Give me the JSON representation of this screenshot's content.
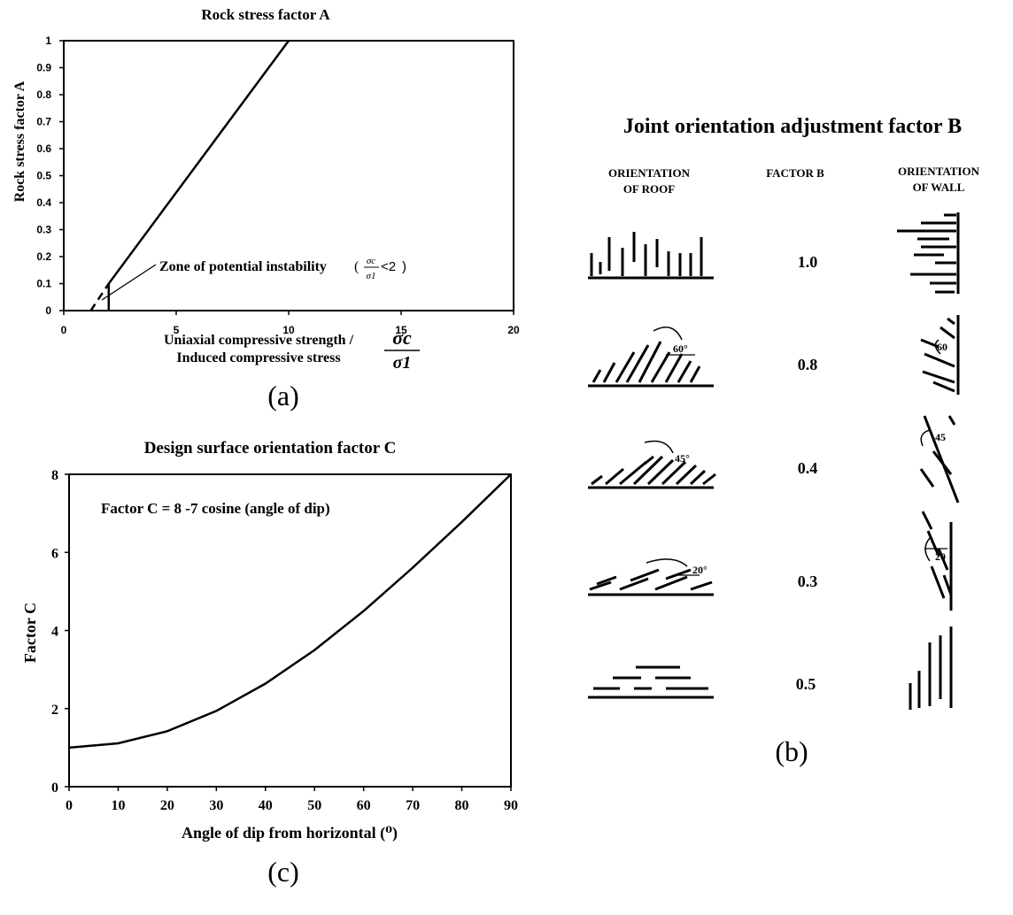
{
  "panel_labels": {
    "a": "(a)",
    "b": "(b)",
    "c": "(c)"
  },
  "chart_data": [
    {
      "type": "line",
      "title": "Rock stress factor A",
      "ylabel": "Rock stress factor A",
      "xlabel_line1": "Uniaxial compressive strength /",
      "xlabel_line2": "Induced compressive stress",
      "xlabel_symbol_num": "σc",
      "xlabel_symbol_den": "σ1",
      "xlim": [
        0,
        20
      ],
      "ylim": [
        0,
        1
      ],
      "x_ticks": [
        "0",
        "5",
        "10",
        "15",
        "20"
      ],
      "y_ticks": [
        "0",
        "0.1",
        "0.2",
        "0.3",
        "0.4",
        "0.5",
        "0.6",
        "0.7",
        "0.8",
        "0.9",
        "1"
      ],
      "series": [
        {
          "style": "solid",
          "x": [
            2,
            2,
            10
          ],
          "y": [
            0,
            0.1,
            1.0
          ]
        },
        {
          "style": "dashed",
          "x": [
            1.2,
            2
          ],
          "y": [
            0,
            0.1
          ]
        }
      ],
      "annotation": {
        "text": "Zone of potential instability",
        "cond_num": "σc",
        "cond_den": "σ1",
        "cond_rel": "<2"
      },
      "grid": false
    },
    {
      "type": "table",
      "title": "Joint orientation adjustment factor B",
      "headers": {
        "roof_line1": "ORIENTATION",
        "roof_line2": "OF ROOF",
        "factor": "FACTOR B",
        "wall_line1": "ORIENTATION",
        "wall_line2": "OF WALL"
      },
      "rows": [
        {
          "factor": "1.0",
          "angle_roof": "",
          "angle_wall": ""
        },
        {
          "factor": "0.8",
          "angle_roof": "60°",
          "angle_wall": "60"
        },
        {
          "factor": "0.4",
          "angle_roof": "45°",
          "angle_wall": "45"
        },
        {
          "factor": "0.3",
          "angle_roof": "20°",
          "angle_wall": "20"
        },
        {
          "factor": "0.5",
          "angle_roof": "",
          "angle_wall": ""
        }
      ]
    },
    {
      "type": "line",
      "title": "Design surface orientation factor C",
      "ylabel": "Factor C",
      "xlabel": "Angle of dip from horizontal (⁰)",
      "formula": "Factor C = 8 -7 cosine (angle of dip)",
      "xlim": [
        0,
        90
      ],
      "ylim": [
        0,
        8
      ],
      "x_ticks": [
        "0",
        "10",
        "20",
        "30",
        "40",
        "50",
        "60",
        "70",
        "80",
        "90"
      ],
      "y_ticks": [
        "0",
        "2",
        "4",
        "6",
        "8"
      ],
      "series": [
        {
          "x": [
            0,
            10,
            20,
            30,
            40,
            50,
            60,
            70,
            80,
            90
          ],
          "y": [
            1.0,
            1.11,
            1.42,
            1.94,
            2.64,
            3.5,
            4.5,
            5.61,
            6.78,
            8.0
          ]
        }
      ],
      "grid": false
    }
  ]
}
